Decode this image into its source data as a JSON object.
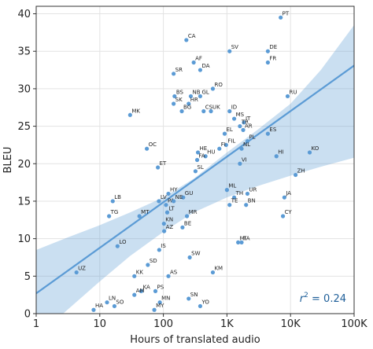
{
  "chart_data": {
    "type": "scatter",
    "x_scale": "log",
    "xlabel": "Hours of translated audio",
    "ylabel": "BLEU",
    "xlim": [
      1,
      100000
    ],
    "ylim": [
      0,
      41
    ],
    "x_ticks": [
      {
        "value": 1,
        "label": "1"
      },
      {
        "value": 10,
        "label": "10"
      },
      {
        "value": 100,
        "label": "100"
      },
      {
        "value": 1000,
        "label": "1K"
      },
      {
        "value": 10000,
        "label": "10K"
      },
      {
        "value": 100000,
        "label": "100K"
      }
    ],
    "y_ticks": [
      0,
      5,
      10,
      15,
      20,
      25,
      30,
      35,
      40
    ],
    "grid": true,
    "point_color": "#5b9bd5",
    "line_color": "#5b9bd5",
    "band_color": "#5b9bd5",
    "annotation": {
      "prefix": "r",
      "sup": "2",
      "suffix": " = 0.24"
    },
    "regression": {
      "x": [
        1,
        100000
      ],
      "y": [
        2.7,
        33.1
      ]
    },
    "band": {
      "x": [
        1,
        3,
        10,
        30,
        100,
        300,
        1000,
        3000,
        10000,
        30000,
        100000
      ],
      "lower": [
        -3.1,
        0.4,
        4.3,
        7.7,
        10.9,
        13.5,
        15.5,
        17.0,
        18.4,
        19.6,
        20.8
      ],
      "upper": [
        8.5,
        10.1,
        11.8,
        13.5,
        15.5,
        18.0,
        21.5,
        24.5,
        28.0,
        32.5,
        38.5
      ]
    },
    "points": [
      {
        "label": "PT",
        "x": 7000,
        "y": 39.5
      },
      {
        "label": "CA",
        "x": 230,
        "y": 36.5
      },
      {
        "label": "SV",
        "x": 1100,
        "y": 35.0
      },
      {
        "label": "DE",
        "x": 4400,
        "y": 35.0
      },
      {
        "label": "AF",
        "x": 300,
        "y": 33.5
      },
      {
        "label": "FR",
        "x": 4400,
        "y": 33.5
      },
      {
        "label": "DA",
        "x": 380,
        "y": 32.5
      },
      {
        "label": "SR",
        "x": 145,
        "y": 32.0
      },
      {
        "label": "RO",
        "x": 600,
        "y": 30.0
      },
      {
        "label": "BS",
        "x": 150,
        "y": 29.0
      },
      {
        "label": "NB",
        "x": 270,
        "y": 29.0
      },
      {
        "label": "GL",
        "x": 380,
        "y": 29.0
      },
      {
        "label": "RU",
        "x": 9000,
        "y": 29.0
      },
      {
        "label": "SK",
        "x": 145,
        "y": 28.0
      },
      {
        "label": "HR",
        "x": 250,
        "y": 28.0
      },
      {
        "label": "CS",
        "x": 430,
        "y": 27.0
      },
      {
        "label": "UK",
        "x": 560,
        "y": 27.0
      },
      {
        "label": "BG",
        "x": 195,
        "y": 27.0
      },
      {
        "label": "ID",
        "x": 1100,
        "y": 27.0
      },
      {
        "label": "MK",
        "x": 30,
        "y": 26.5
      },
      {
        "label": "MS",
        "x": 1300,
        "y": 26.0
      },
      {
        "label": "IT",
        "x": 1850,
        "y": 25.5
      },
      {
        "label": "TR",
        "x": 1600,
        "y": 25.0
      },
      {
        "label": "AR",
        "x": 1800,
        "y": 24.5
      },
      {
        "label": "EL",
        "x": 920,
        "y": 24.0
      },
      {
        "label": "ES",
        "x": 4400,
        "y": 24.0
      },
      {
        "label": "FIL",
        "x": 970,
        "y": 22.5
      },
      {
        "label": "PL",
        "x": 2100,
        "y": 23.0
      },
      {
        "label": "FI",
        "x": 760,
        "y": 22.0
      },
      {
        "label": "OC",
        "x": 55,
        "y": 22.0
      },
      {
        "label": "NL",
        "x": 1700,
        "y": 22.0
      },
      {
        "label": "HE",
        "x": 350,
        "y": 21.5
      },
      {
        "label": "HU",
        "x": 460,
        "y": 21.0
      },
      {
        "label": "HI",
        "x": 6000,
        "y": 21.0
      },
      {
        "label": "KO",
        "x": 20000,
        "y": 21.5
      },
      {
        "label": "FA",
        "x": 340,
        "y": 20.5
      },
      {
        "label": "VI",
        "x": 1600,
        "y": 20.0
      },
      {
        "label": "ET",
        "x": 82,
        "y": 19.5
      },
      {
        "label": "SL",
        "x": 320,
        "y": 19.0
      },
      {
        "label": "ZH",
        "x": 12000,
        "y": 18.5
      },
      {
        "label": "ML",
        "x": 1000,
        "y": 16.5
      },
      {
        "label": "HY",
        "x": 120,
        "y": 16.0
      },
      {
        "label": "UR",
        "x": 2100,
        "y": 16.0
      },
      {
        "label": "GU",
        "x": 205,
        "y": 15.5
      },
      {
        "label": "TH",
        "x": 1300,
        "y": 15.5
      },
      {
        "label": "JA",
        "x": 8000,
        "y": 15.5
      },
      {
        "label": "LB",
        "x": 16,
        "y": 15.0
      },
      {
        "label": "LV",
        "x": 85,
        "y": 15.0
      },
      {
        "label": "PA",
        "x": 110,
        "y": 14.5
      },
      {
        "label": "NE",
        "x": 145,
        "y": 15.0
      },
      {
        "label": "TE",
        "x": 1100,
        "y": 14.5
      },
      {
        "label": "BN",
        "x": 2000,
        "y": 14.5
      },
      {
        "label": "LT",
        "x": 115,
        "y": 13.5
      },
      {
        "label": "TG",
        "x": 14,
        "y": 13.0
      },
      {
        "label": "MT",
        "x": 42,
        "y": 13.0
      },
      {
        "label": "MR",
        "x": 235,
        "y": 13.0
      },
      {
        "label": "CY",
        "x": 7600,
        "y": 13.0
      },
      {
        "label": "KN",
        "x": 102,
        "y": 12.0
      },
      {
        "label": "AZ",
        "x": 103,
        "y": 11.0
      },
      {
        "label": "BE",
        "x": 200,
        "y": 11.5
      },
      {
        "label": "LO",
        "x": 19,
        "y": 9.0
      },
      {
        "label": "MI",
        "x": 1500,
        "y": 9.5
      },
      {
        "label": "TA",
        "x": 1700,
        "y": 9.5
      },
      {
        "label": "IS",
        "x": 86,
        "y": 8.5
      },
      {
        "label": "SW",
        "x": 260,
        "y": 7.5
      },
      {
        "label": "SD",
        "x": 57,
        "y": 6.5
      },
      {
        "label": "UZ",
        "x": 4.3,
        "y": 5.5
      },
      {
        "label": "KM",
        "x": 600,
        "y": 5.5
      },
      {
        "label": "KK",
        "x": 35,
        "y": 5.0
      },
      {
        "label": "AS",
        "x": 120,
        "y": 5.0
      },
      {
        "label": "PS",
        "x": 75,
        "y": 3.0
      },
      {
        "label": "KA",
        "x": 45,
        "y": 3.0
      },
      {
        "label": "AM",
        "x": 35,
        "y": 2.5
      },
      {
        "label": "LN",
        "x": 13,
        "y": 1.5
      },
      {
        "label": "SN",
        "x": 250,
        "y": 2.0
      },
      {
        "label": "SO",
        "x": 17,
        "y": 1.0
      },
      {
        "label": "MN",
        "x": 88,
        "y": 1.5
      },
      {
        "label": "YO",
        "x": 380,
        "y": 1.0
      },
      {
        "label": "HA",
        "x": 8,
        "y": 0.5
      },
      {
        "label": "MY",
        "x": 72,
        "y": 0.5
      }
    ]
  }
}
